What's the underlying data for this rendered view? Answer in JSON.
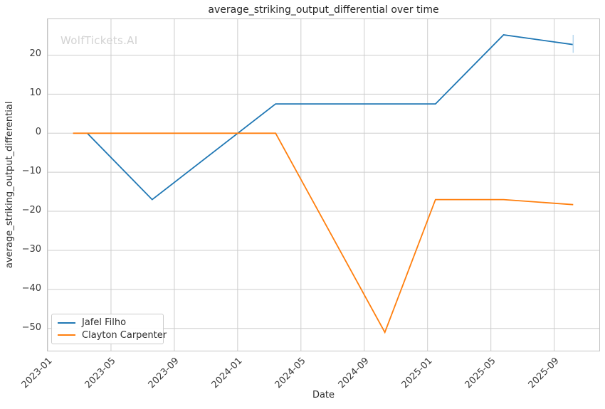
{
  "title": "average_striking_output_differential over time",
  "watermark": "WolfTickets.AI",
  "xlabel": "Date",
  "ylabel": "average_striking_output_differential",
  "legend": {
    "position": "lower-left",
    "entries": [
      {
        "label": "Jafel Filho",
        "color": "#1f77b4"
      },
      {
        "label": "Clayton Carpenter",
        "color": "#ff7f0e"
      }
    ]
  },
  "colors": {
    "background": "#ffffff",
    "grid": "#cdcdcd",
    "spine": "#c4c4c4",
    "text": "#2e2e2e",
    "watermark": "#d2d2d2",
    "series_blue": "#1f77b4",
    "series_orange": "#ff7f0e",
    "end_marker_blue": "#b9d8ee"
  },
  "chart_data": {
    "type": "line",
    "title": "average_striking_output_differential over time",
    "xlabel": "Date",
    "ylabel": "average_striking_output_differential",
    "grid": true,
    "legend_position": "lower-left",
    "x_unit": "months since 2023-01",
    "xlim_months": [
      0,
      34.85
    ],
    "ylim": [
      -55.7,
      29.2
    ],
    "x_ticks": [
      {
        "label": "2023-01",
        "month": 0
      },
      {
        "label": "2023-05",
        "month": 4
      },
      {
        "label": "2023-09",
        "month": 8
      },
      {
        "label": "2024-01",
        "month": 12
      },
      {
        "label": "2024-05",
        "month": 16
      },
      {
        "label": "2024-09",
        "month": 20
      },
      {
        "label": "2025-01",
        "month": 24
      },
      {
        "label": "2025-05",
        "month": 28
      },
      {
        "label": "2025-09",
        "month": 32
      }
    ],
    "y_ticks": [
      {
        "label": "20",
        "value": 20
      },
      {
        "label": "10",
        "value": 10
      },
      {
        "label": "0",
        "value": 0
      },
      {
        "label": "−10",
        "value": -10
      },
      {
        "label": "−20",
        "value": -20
      },
      {
        "label": "−30",
        "value": -30
      },
      {
        "label": "−40",
        "value": -40
      },
      {
        "label": "−50",
        "value": -50
      }
    ],
    "series": [
      {
        "name": "Jafel Filho",
        "color": "#1f77b4",
        "points": [
          {
            "date": "2023-03",
            "month": 2.5,
            "value": 0
          },
          {
            "date": "2023-07",
            "month": 6.6,
            "value": -17
          },
          {
            "date": "2024-03",
            "month": 14.4,
            "value": 7.5
          },
          {
            "date": "2025-01",
            "month": 24.5,
            "value": 7.5
          },
          {
            "date": "2025-06",
            "month": 28.8,
            "value": 25.2
          },
          {
            "date": "2025-10",
            "month": 33.2,
            "value": 22.7
          }
        ]
      },
      {
        "name": "Clayton Carpenter",
        "color": "#ff7f0e",
        "points": [
          {
            "date": "2023-02",
            "month": 1.6,
            "value": 0
          },
          {
            "date": "2024-03",
            "month": 14.4,
            "value": 0
          },
          {
            "date": "2024-10",
            "month": 21.3,
            "value": -51
          },
          {
            "date": "2025-01",
            "month": 24.5,
            "value": -17
          },
          {
            "date": "2025-06",
            "month": 28.8,
            "value": -17
          },
          {
            "date": "2025-10",
            "month": 33.2,
            "value": -18.3
          }
        ]
      }
    ],
    "end_marker": {
      "series": "Jafel Filho",
      "month": 33.2,
      "value_from": 25.2,
      "value_to": 20.6,
      "color": "#b9d8ee"
    }
  }
}
